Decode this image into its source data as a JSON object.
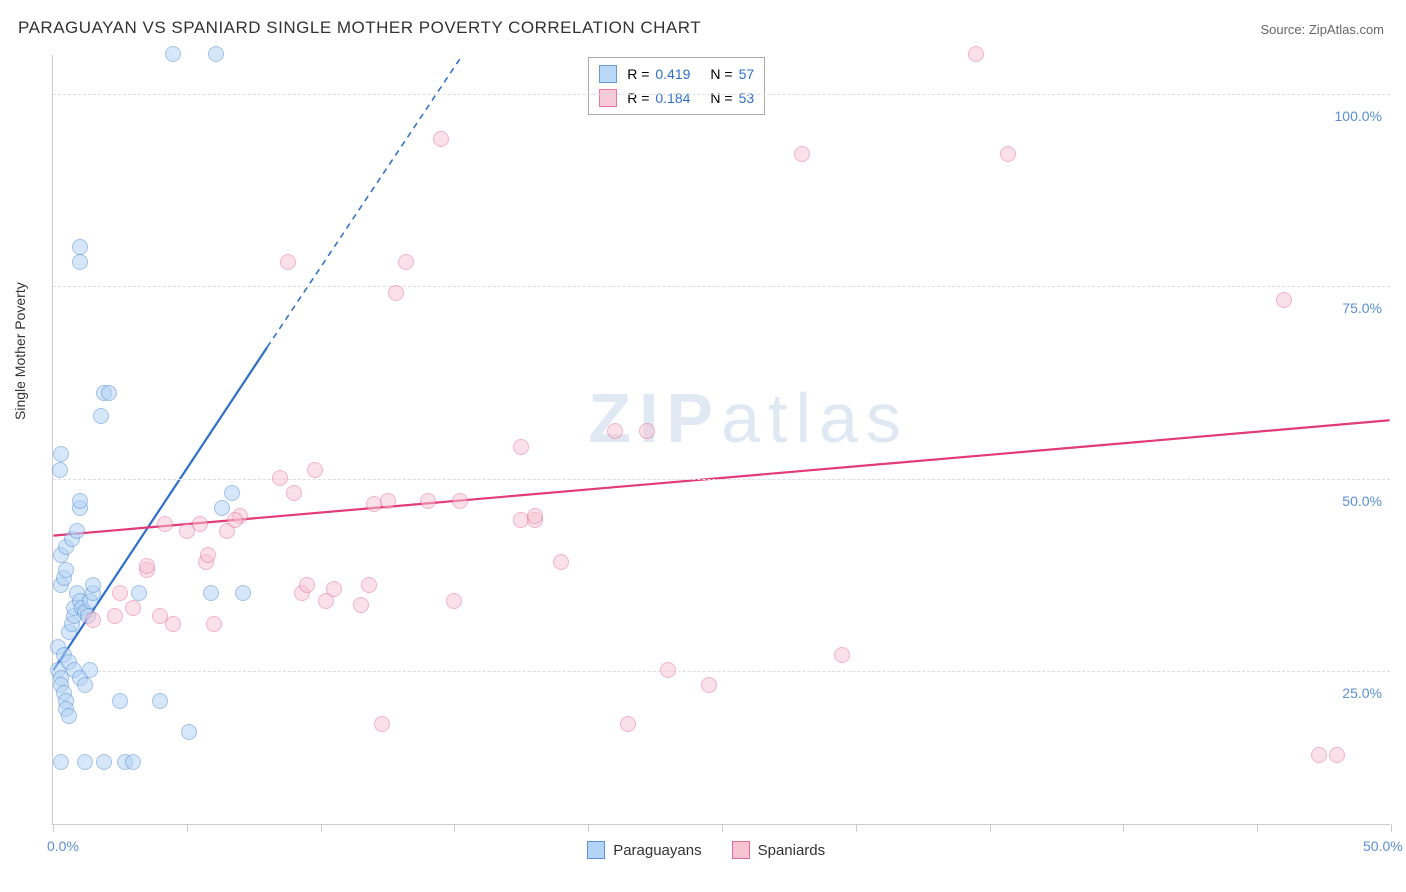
{
  "title": "PARAGUAYAN VS SPANIARD SINGLE MOTHER POVERTY CORRELATION CHART",
  "source_label": "Source: ZipAtlas.com",
  "y_axis_label": "Single Mother Poverty",
  "chart": {
    "type": "scatter",
    "xlim": [
      0,
      50
    ],
    "ylim": [
      5,
      105
    ],
    "x_ticks": [
      0,
      5,
      10,
      15,
      20,
      25,
      30,
      35,
      40,
      45,
      50
    ],
    "x_tick_labels": {
      "0": "0.0%",
      "50": "50.0%"
    },
    "y_ticks": [
      25,
      50,
      75,
      100
    ],
    "y_tick_labels": {
      "25": "25.0%",
      "50": "50.0%",
      "75": "75.0%",
      "100": "100.0%"
    },
    "grid_color": "#dddddd",
    "axis_color": "#cccccc",
    "background_color": "#ffffff",
    "marker_radius": 8,
    "marker_stroke_width": 1.2,
    "series": [
      {
        "name": "Paraguayans",
        "fill_color": "#b3d4f5",
        "stroke_color": "#5b8fd6",
        "fill_opacity": 0.55,
        "R": "0.419",
        "N": "57",
        "trend": {
          "x1": 0,
          "y1": 25,
          "x2": 8,
          "y2": 67,
          "dash_x2": 15.5,
          "dash_y2": 106,
          "color": "#2e6fc9",
          "width": 2.2
        },
        "points": [
          [
            0.2,
            25
          ],
          [
            0.3,
            24
          ],
          [
            0.3,
            23
          ],
          [
            0.4,
            22
          ],
          [
            0.5,
            21
          ],
          [
            0.5,
            20
          ],
          [
            0.6,
            19
          ],
          [
            0.6,
            30
          ],
          [
            0.7,
            31
          ],
          [
            0.8,
            32
          ],
          [
            0.8,
            33
          ],
          [
            0.3,
            36
          ],
          [
            0.4,
            37
          ],
          [
            0.5,
            38
          ],
          [
            0.9,
            35
          ],
          [
            1.0,
            34
          ],
          [
            1.1,
            33
          ],
          [
            1.2,
            32.5
          ],
          [
            1.3,
            32
          ],
          [
            1.4,
            34
          ],
          [
            1.5,
            35
          ],
          [
            1.5,
            36
          ],
          [
            0.3,
            40
          ],
          [
            0.5,
            41
          ],
          [
            0.7,
            42
          ],
          [
            0.9,
            43
          ],
          [
            0.2,
            28
          ],
          [
            0.4,
            27
          ],
          [
            0.6,
            26
          ],
          [
            0.8,
            25
          ],
          [
            1.0,
            24
          ],
          [
            1.2,
            23
          ],
          [
            1.4,
            25
          ],
          [
            0.3,
            53
          ],
          [
            0.25,
            51
          ],
          [
            1.0,
            46
          ],
          [
            1.0,
            47
          ],
          [
            1.9,
            61
          ],
          [
            2.1,
            61
          ],
          [
            1.8,
            58
          ],
          [
            1.0,
            80
          ],
          [
            1.0,
            78
          ],
          [
            4.5,
            105
          ],
          [
            6.1,
            105
          ],
          [
            0.3,
            13
          ],
          [
            1.2,
            13
          ],
          [
            1.9,
            13
          ],
          [
            2.7,
            13
          ],
          [
            3.0,
            13
          ],
          [
            2.5,
            21
          ],
          [
            4.0,
            21
          ],
          [
            5.1,
            17
          ],
          [
            3.2,
            35
          ],
          [
            5.9,
            35
          ],
          [
            7.1,
            35
          ],
          [
            6.3,
            46
          ],
          [
            6.7,
            48
          ]
        ]
      },
      {
        "name": "Spaniards",
        "fill_color": "#f7c3d3",
        "stroke_color": "#e56a95",
        "fill_opacity": 0.5,
        "R": "0.184",
        "N": "53",
        "trend": {
          "x1": 0,
          "y1": 42.5,
          "x2": 50,
          "y2": 57.5,
          "color": "#e23b77",
          "width": 2.2
        },
        "points": [
          [
            1.5,
            31.5
          ],
          [
            2.3,
            32
          ],
          [
            2.5,
            35
          ],
          [
            3.0,
            33
          ],
          [
            3.5,
            38
          ],
          [
            3.5,
            38.5
          ],
          [
            4.0,
            32
          ],
          [
            4.5,
            31
          ],
          [
            5.0,
            43
          ],
          [
            5.5,
            44
          ],
          [
            5.7,
            39
          ],
          [
            5.8,
            40
          ],
          [
            6.0,
            31
          ],
          [
            6.5,
            43
          ],
          [
            7.0,
            45
          ],
          [
            8.5,
            50
          ],
          [
            8.8,
            78
          ],
          [
            9.0,
            48
          ],
          [
            9.3,
            35
          ],
          [
            9.5,
            36
          ],
          [
            9.8,
            51
          ],
          [
            10.2,
            34
          ],
          [
            10.5,
            35.5
          ],
          [
            11.5,
            33.5
          ],
          [
            11.8,
            36
          ],
          [
            12.0,
            46.5
          ],
          [
            12.5,
            47
          ],
          [
            12.8,
            74
          ],
          [
            13.2,
            78
          ],
          [
            14.0,
            47
          ],
          [
            14.5,
            94
          ],
          [
            15.0,
            34
          ],
          [
            15.2,
            47
          ],
          [
            17.5,
            44.5
          ],
          [
            18.0,
            44.5
          ],
          [
            17.5,
            54
          ],
          [
            18.0,
            45
          ],
          [
            19.0,
            39
          ],
          [
            21.0,
            56
          ],
          [
            21.5,
            18
          ],
          [
            22.2,
            56
          ],
          [
            23.0,
            25
          ],
          [
            24.5,
            23
          ],
          [
            28.0,
            92
          ],
          [
            29.5,
            27
          ],
          [
            12.3,
            18
          ],
          [
            34.5,
            105
          ],
          [
            35.7,
            92
          ],
          [
            46.0,
            73
          ],
          [
            47.3,
            14
          ],
          [
            48.0,
            14
          ],
          [
            4.2,
            44
          ],
          [
            6.8,
            44.5
          ]
        ]
      }
    ]
  },
  "stats_box": {
    "r_label": "R =",
    "n_label": "N =",
    "value_color": "#2e6fc9",
    "border_color": "#aaaaaa"
  },
  "bottom_legend": {
    "items": [
      "Paraguayans",
      "Spaniards"
    ]
  },
  "watermark": {
    "text_zip": "ZIP",
    "text_atlas": "atlas",
    "color": "#b9cde6",
    "opacity": 0.45
  }
}
